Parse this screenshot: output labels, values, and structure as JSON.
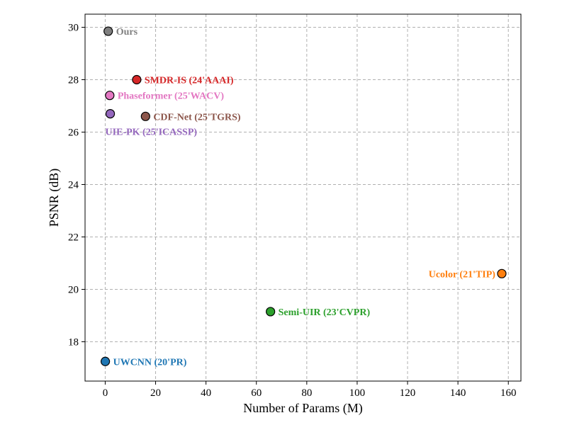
{
  "chart_data": {
    "type": "scatter",
    "xlabel": "Number of Params (M)",
    "ylabel": "PSNR (dB)",
    "xlim": [
      -8,
      165
    ],
    "ylim": [
      16.5,
      30.5
    ],
    "xticks": [
      0,
      20,
      40,
      60,
      80,
      100,
      120,
      140,
      160
    ],
    "yticks": [
      18,
      20,
      22,
      24,
      26,
      28,
      30
    ],
    "grid": true,
    "points": [
      {
        "label": "Ours",
        "x": 1.2,
        "y": 29.85,
        "color": "#7f7f7f",
        "label_pos": "right"
      },
      {
        "label": "SMDR-IS (24'AAAI)",
        "x": 12.5,
        "y": 28.0,
        "color": "#d62728",
        "label_pos": "right"
      },
      {
        "label": "Phaseformer (25'WACV)",
        "x": 1.8,
        "y": 27.4,
        "color": "#e377c2",
        "label_pos": "right"
      },
      {
        "label": "UIE-PK (25'ICASSP)",
        "x": 2.0,
        "y": 26.7,
        "color": "#9467bd",
        "label_pos": "below"
      },
      {
        "label": "CDF-Net (25'TGRS)",
        "x": 16.0,
        "y": 26.6,
        "color": "#8c564b",
        "label_pos": "right"
      },
      {
        "label": "Ucolor (21'TIP)",
        "x": 157.4,
        "y": 20.6,
        "color": "#ff7f0e",
        "label_pos": "left"
      },
      {
        "label": "Semi-UIR (23'CVPR)",
        "x": 65.6,
        "y": 19.15,
        "color": "#2ca02c",
        "label_pos": "right"
      },
      {
        "label": "UWCNN (20'PR)",
        "x": 0.04,
        "y": 17.25,
        "color": "#1f77b4",
        "label_pos": "right"
      }
    ]
  }
}
